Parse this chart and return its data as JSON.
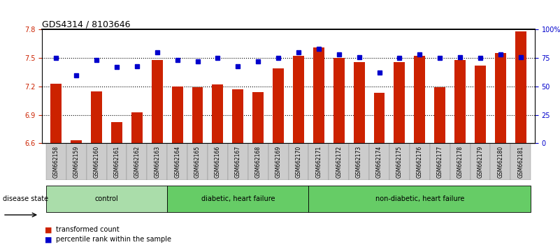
{
  "title": "GDS4314 / 8103646",
  "samples": [
    "GSM662158",
    "GSM662159",
    "GSM662160",
    "GSM662161",
    "GSM662162",
    "GSM662163",
    "GSM662164",
    "GSM662165",
    "GSM662166",
    "GSM662167",
    "GSM662168",
    "GSM662169",
    "GSM662170",
    "GSM662171",
    "GSM662172",
    "GSM662173",
    "GSM662174",
    "GSM662175",
    "GSM662176",
    "GSM662177",
    "GSM662178",
    "GSM662179",
    "GSM662180",
    "GSM662181"
  ],
  "bar_values": [
    7.23,
    6.63,
    7.15,
    6.82,
    6.93,
    7.48,
    7.2,
    7.19,
    7.22,
    7.17,
    7.14,
    7.39,
    7.52,
    7.61,
    7.5,
    7.46,
    7.13,
    7.46,
    7.52,
    7.19,
    7.48,
    7.42,
    7.55,
    7.78
  ],
  "percentile_values": [
    75,
    60,
    73,
    67,
    68,
    80,
    73,
    72,
    75,
    68,
    72,
    75,
    80,
    83,
    78,
    76,
    62,
    75,
    78,
    75,
    76,
    75,
    78,
    76
  ],
  "bar_color": "#cc2200",
  "percentile_color": "#0000cc",
  "ylim_left": [
    6.6,
    7.8
  ],
  "ylim_right": [
    0,
    100
  ],
  "yticks_left": [
    6.6,
    6.9,
    7.2,
    7.5,
    7.8
  ],
  "yticks_right": [
    0,
    25,
    50,
    75,
    100
  ],
  "ytick_labels_right": [
    "0",
    "25",
    "50",
    "75",
    "100%"
  ],
  "hlines": [
    7.5,
    7.2,
    6.9
  ],
  "group_defs": [
    {
      "label": "control",
      "start": 0,
      "end": 5,
      "color": "#aaddaa"
    },
    {
      "label": "diabetic, heart failure",
      "start": 6,
      "end": 12,
      "color": "#66cc66"
    },
    {
      "label": "non-diabetic, heart failure",
      "start": 13,
      "end": 23,
      "color": "#66cc66"
    }
  ],
  "legend_bar_label": "transformed count",
  "legend_pct_label": "percentile rank within the sample",
  "disease_state_label": "disease state",
  "background_color": "#ffffff",
  "tick_label_color_left": "#cc2200",
  "tick_label_color_right": "#0000cc",
  "sample_bg_color": "#cccccc"
}
